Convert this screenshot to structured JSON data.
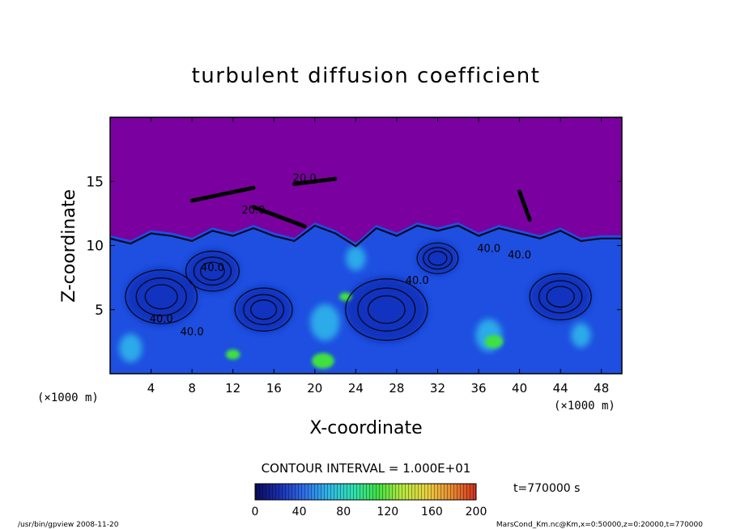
{
  "chart_data": {
    "type": "heatmap",
    "title": "turbulent diffusion coefficient",
    "xlabel": "X-coordinate",
    "ylabel": "Z-coordinate",
    "x_unit_left": "(×1000 m)",
    "x_unit_right": "(×1000 m)",
    "xlim": [
      0,
      50
    ],
    "ylim": [
      0,
      20
    ],
    "x_ticks": [
      "4",
      "8",
      "12",
      "16",
      "20",
      "24",
      "28",
      "32",
      "36",
      "40",
      "44",
      "48"
    ],
    "x_tick_values": [
      4,
      8,
      12,
      16,
      20,
      24,
      28,
      32,
      36,
      40,
      44,
      48
    ],
    "y_ticks": [
      "5",
      "10",
      "15"
    ],
    "y_tick_values": [
      5,
      10,
      15
    ],
    "contour_interval": "CONTOUR INTERVAL = 1.000E+01",
    "contour_labels": [
      "40.0",
      "40.0",
      "40.0",
      "40.0",
      "40.0",
      "20.0",
      "20.0",
      "40.0"
    ],
    "time_label": "t=770000 s",
    "colorbar": {
      "ticks": [
        "0",
        "40",
        "80",
        "120",
        "160",
        "200"
      ],
      "range": [
        0,
        200
      ],
      "colors": [
        "#0a0a5a",
        "#1a2fb0",
        "#2f6ee8",
        "#2fb8e8",
        "#30e0b0",
        "#40e040",
        "#b8e840",
        "#e8d040",
        "#e88a30",
        "#d03020"
      ]
    },
    "background_color": "#7a00a0",
    "field_base_color": "#1e4fe0",
    "interface_profile": [
      [
        0,
        10.8
      ],
      [
        2,
        10.4
      ],
      [
        4,
        11.2
      ],
      [
        6,
        11.0
      ],
      [
        8,
        10.6
      ],
      [
        10,
        11.4
      ],
      [
        12,
        11.0
      ],
      [
        14,
        11.6
      ],
      [
        16,
        11.0
      ],
      [
        18,
        10.6
      ],
      [
        20,
        11.8
      ],
      [
        22,
        11.2
      ],
      [
        24,
        10.2
      ],
      [
        26,
        11.6
      ],
      [
        28,
        11.0
      ],
      [
        30,
        11.8
      ],
      [
        32,
        11.4
      ],
      [
        34,
        11.8
      ],
      [
        36,
        11.0
      ],
      [
        38,
        11.6
      ],
      [
        40,
        11.2
      ],
      [
        42,
        10.8
      ],
      [
        44,
        11.4
      ],
      [
        46,
        10.6
      ],
      [
        48,
        10.8
      ],
      [
        50,
        10.8
      ]
    ],
    "blue_blobs": [
      {
        "x": 5,
        "z": 6,
        "r": 3.5
      },
      {
        "x": 15,
        "z": 5,
        "r": 2.8
      },
      {
        "x": 27,
        "z": 5,
        "r": 4.0
      },
      {
        "x": 32,
        "z": 9,
        "r": 2.0
      },
      {
        "x": 44,
        "z": 6,
        "r": 3.0
      },
      {
        "x": 10,
        "z": 8,
        "r": 2.6
      }
    ],
    "cyan_blobs": [
      {
        "x": 21,
        "z": 4,
        "r": 1.8
      },
      {
        "x": 37,
        "z": 3,
        "r": 1.6
      },
      {
        "x": 2,
        "z": 2,
        "r": 1.4
      },
      {
        "x": 24,
        "z": 9,
        "r": 1.2
      },
      {
        "x": 46,
        "z": 3,
        "r": 1.2
      }
    ],
    "green_blobs": [
      {
        "x": 20.8,
        "z": 1,
        "r": 1.1
      },
      {
        "x": 37.5,
        "z": 2.5,
        "r": 0.9
      },
      {
        "x": 23,
        "z": 6,
        "r": 0.6
      },
      {
        "x": 12,
        "z": 1.5,
        "r": 0.7
      }
    ],
    "plumes": [
      {
        "x0": 18,
        "z0": 14.8,
        "x1": 22,
        "z1": 15.2
      },
      {
        "x0": 8,
        "z0": 13.5,
        "x1": 14,
        "z1": 14.5
      },
      {
        "x0": 14,
        "z0": 13.0,
        "x1": 19,
        "z1": 11.5
      },
      {
        "x0": 40,
        "z0": 14.2,
        "x1": 41,
        "z1": 12.0
      }
    ]
  },
  "footer": {
    "left": "/usr/bin/gpview  2008-11-20",
    "right": "MarsCond_Km.nc@Km,x=0:50000,z=0:20000,t=770000"
  }
}
